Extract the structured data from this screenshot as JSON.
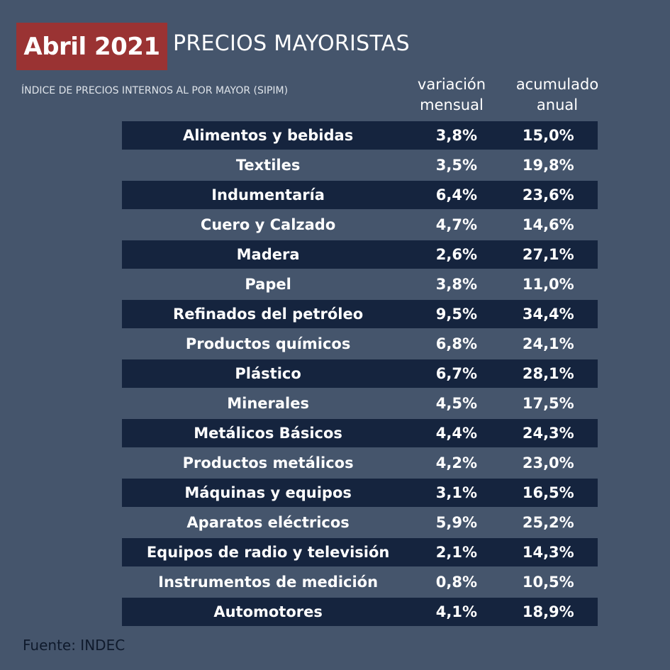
{
  "header": {
    "badge": "Abril 2021",
    "title": "PRECIOS MAYORISTAS",
    "subtitle": "ÍNDICE DE PRECIOS INTERNOS AL POR MAYOR (SIPIM)",
    "col_monthly": [
      "variación",
      "mensual"
    ],
    "col_annual": [
      "acumulado",
      "anual"
    ]
  },
  "colors": {
    "background": "#45556c",
    "badge": "#9a3333",
    "row_shaded": "#15243e"
  },
  "chart_data": {
    "type": "table",
    "columns": [
      "variación mensual",
      "acumulado anual"
    ],
    "rows": [
      {
        "label": "Alimentos y bebidas",
        "mensual": "3,8%",
        "anual": "15,0%"
      },
      {
        "label": "Textiles",
        "mensual": "3,5%",
        "anual": "19,8%"
      },
      {
        "label": "Indumentaría",
        "mensual": "6,4%",
        "anual": "23,6%"
      },
      {
        "label": "Cuero y Calzado",
        "mensual": "4,7%",
        "anual": "14,6%"
      },
      {
        "label": "Madera",
        "mensual": "2,6%",
        "anual": "27,1%"
      },
      {
        "label": "Papel",
        "mensual": "3,8%",
        "anual": "11,0%"
      },
      {
        "label": "Refinados del petróleo",
        "mensual": "9,5%",
        "anual": "34,4%"
      },
      {
        "label": "Productos químicos",
        "mensual": "6,8%",
        "anual": "24,1%"
      },
      {
        "label": "Plástico",
        "mensual": "6,7%",
        "anual": "28,1%"
      },
      {
        "label": "Minerales",
        "mensual": "4,5%",
        "anual": "17,5%"
      },
      {
        "label": "Metálicos Básicos",
        "mensual": "4,4%",
        "anual": "24,3%"
      },
      {
        "label": "Productos metálicos",
        "mensual": "4,2%",
        "anual": "23,0%"
      },
      {
        "label": "Máquinas y equipos",
        "mensual": "3,1%",
        "anual": "16,5%"
      },
      {
        "label": "Aparatos eléctricos",
        "mensual": "5,9%",
        "anual": "25,2%"
      },
      {
        "label": "Equipos de radio y televisión",
        "mensual": "2,1%",
        "anual": "14,3%"
      },
      {
        "label": "Instrumentos de medición",
        "mensual": "0,8%",
        "anual": "10,5%"
      },
      {
        "label": "Automotores",
        "mensual": "4,1%",
        "anual": "18,9%"
      }
    ]
  },
  "source": "Fuente: INDEC"
}
